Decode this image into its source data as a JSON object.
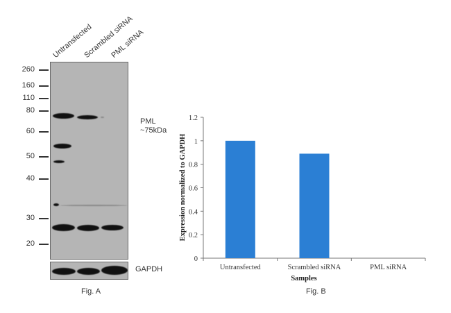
{
  "chart_data": [
    {
      "type": "western_blot",
      "caption": "Fig. A",
      "lanes": [
        "Untransfected",
        "Scrambled siRNA",
        "PML siRNA"
      ],
      "mw_markers": [
        "260",
        "160",
        "110",
        "80",
        "60",
        "50",
        "40",
        "30",
        "20"
      ],
      "target_label": "PML",
      "target_size": "~75kDa",
      "loading_control": "GAPDH"
    },
    {
      "type": "bar",
      "caption": "Fig. B",
      "categories": [
        "Untransfected",
        "Scrambled siRNA",
        "PML siRNA"
      ],
      "values": [
        1.0,
        0.89,
        0.0
      ],
      "xlabel": "Samples",
      "ylabel": "Expression normalized to GAPDH",
      "ylim": [
        0,
        1.2
      ],
      "yticks": [
        "0",
        "0.2",
        "0.4",
        "0.6",
        "0.8",
        "1",
        "1.2"
      ],
      "bar_color": "#2b7fd4",
      "grid": false
    }
  ]
}
